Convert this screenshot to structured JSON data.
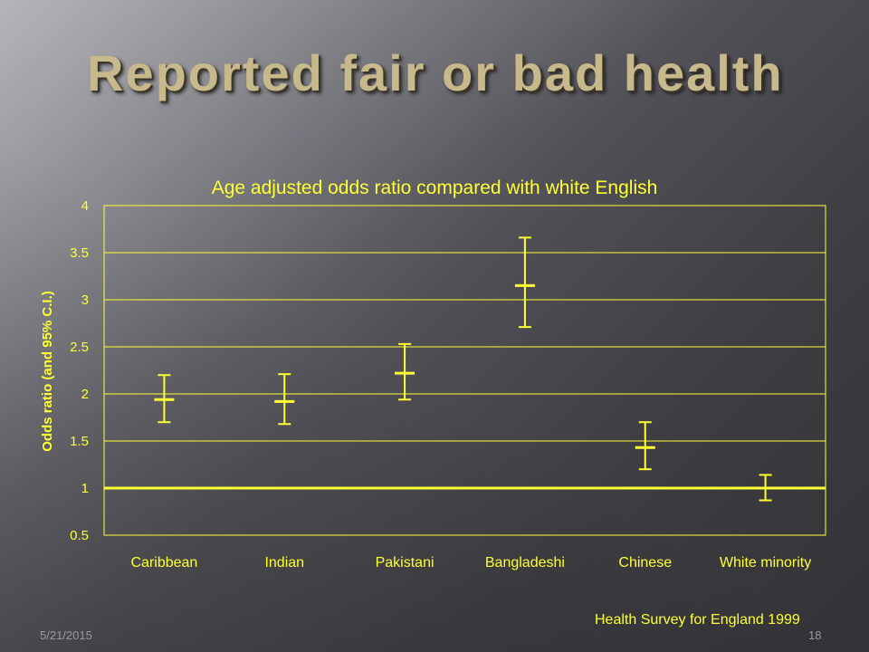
{
  "slide": {
    "title": "Reported fair or bad health",
    "footer_date": "5/21/2015",
    "slide_number": "18",
    "source_note": "Health Survey for England 1999"
  },
  "colors": {
    "chart_yellow": "#ffff33",
    "title_tan": "#c8b98c"
  },
  "chart_data": {
    "type": "scatter",
    "title": "Age adjusted odds ratio compared with white English",
    "xlabel": "",
    "ylabel": "Odds ratio (and 95% C.I.)",
    "ylim": [
      0.5,
      4
    ],
    "yticks": [
      "0.5",
      "1",
      "1.5",
      "2",
      "2.5",
      "3",
      "3.5",
      "4"
    ],
    "grid": true,
    "reference_line": 1,
    "categories": [
      "Caribbean",
      "Indian",
      "Pakistani",
      "Bangladeshi",
      "Chinese",
      "White minority"
    ],
    "points": [
      {
        "category": "Caribbean",
        "value": 1.94,
        "lower": 1.7,
        "upper": 2.2
      },
      {
        "category": "Indian",
        "value": 1.92,
        "lower": 1.68,
        "upper": 2.21
      },
      {
        "category": "Pakistani",
        "value": 2.22,
        "lower": 1.94,
        "upper": 2.53
      },
      {
        "category": "Bangladeshi",
        "value": 3.15,
        "lower": 2.71,
        "upper": 3.66
      },
      {
        "category": "Chinese",
        "value": 1.43,
        "lower": 1.2,
        "upper": 1.7
      },
      {
        "category": "White minority",
        "value": 1.0,
        "lower": 0.87,
        "upper": 1.14
      }
    ]
  }
}
